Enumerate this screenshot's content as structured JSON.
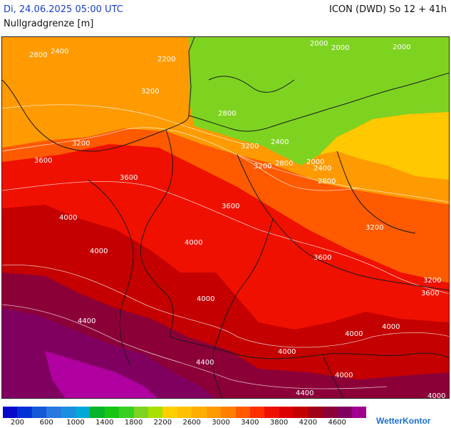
{
  "header": {
    "datetime": "Di, 24.06.2025 05:00 UTC",
    "model_run": "ICON (DWD) So 12 + 41h",
    "parameter": "Nullgradgrenze [m]"
  },
  "map": {
    "contour_labels": [
      "2800",
      "2400",
      "2000",
      "2000",
      "2000",
      "2200",
      "3200",
      "2800",
      "3200",
      "2400",
      "3600",
      "3200",
      "3200",
      "2800",
      "2000",
      "2400",
      "2800",
      "3600",
      "3600",
      "4000",
      "4000",
      "4000",
      "3200",
      "3600",
      "3200",
      "3600",
      "4000",
      "4400",
      "4000",
      "4000",
      "4000",
      "4400",
      "4400",
      "4000",
      "4000"
    ],
    "colors": {
      "green": "#7ed320",
      "yellow": "#ffc800",
      "orange": "#ff9a00",
      "red_orange": "#ff5a00",
      "red": "#f01000",
      "dark_red": "#c40000",
      "crimson": "#8c0038",
      "purple": "#800060",
      "magenta": "#b000a0"
    }
  },
  "legend": {
    "colors": [
      "#0808c8",
      "#0030d8",
      "#1458d8",
      "#2878e0",
      "#1890e0",
      "#00a8d8",
      "#08b428",
      "#18c414",
      "#38d020",
      "#7ed320",
      "#a8e000",
      "#ffd000",
      "#ffc000",
      "#ffae00",
      "#ff9a00",
      "#ff7e00",
      "#ff5a00",
      "#ff3000",
      "#f01000",
      "#dc0000",
      "#c40000",
      "#a00018",
      "#8c0038",
      "#800060",
      "#a00090"
    ],
    "ticks": [
      "200",
      "600",
      "1000",
      "1400",
      "1800",
      "2200",
      "2600",
      "3000",
      "3400",
      "3800",
      "4200",
      "4600"
    ]
  },
  "branding": "WetterKontor"
}
